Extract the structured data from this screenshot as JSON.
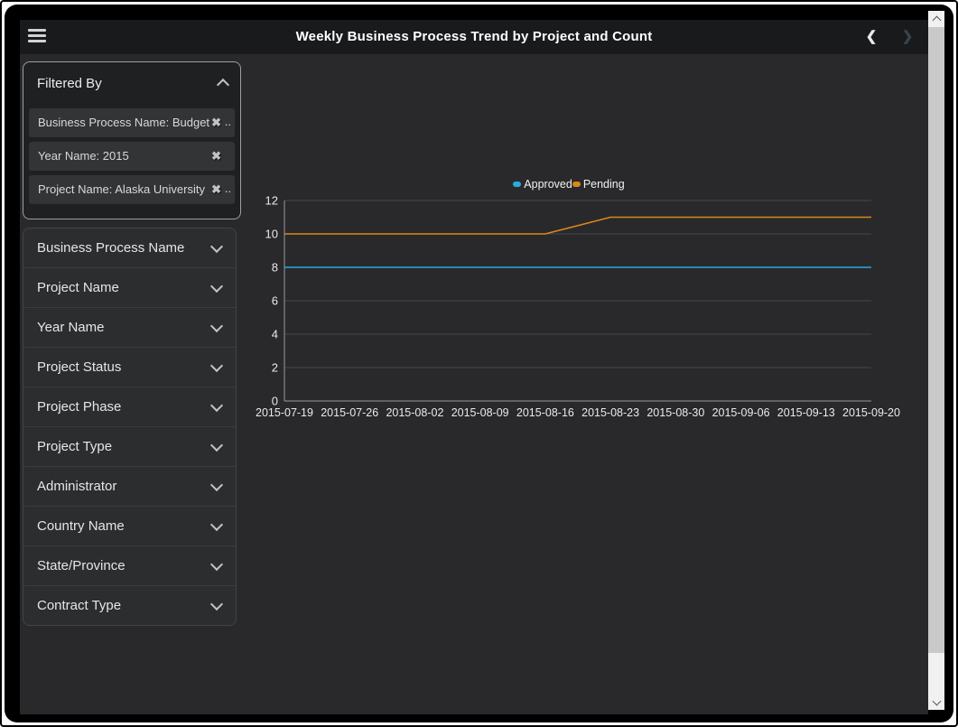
{
  "header": {
    "title": "Weekly Business Process Trend by Project and Count",
    "menu_icon": "hamburger",
    "prev_label": "❮",
    "next_label": "❯"
  },
  "filtered_by": {
    "title": "Filtered By",
    "collapse_icon": "chevron-up",
    "chips": [
      {
        "label": "Business Process Name: Budget",
        "ellipsis": "..",
        "remove_icon": "✖"
      },
      {
        "label": "Year Name: 2015",
        "ellipsis": "",
        "remove_icon": "✖"
      },
      {
        "label": "Project Name: Alaska University",
        "ellipsis": "..",
        "remove_icon": "✖"
      }
    ]
  },
  "accordions": [
    {
      "label": "Business Process Name"
    },
    {
      "label": "Project Name"
    },
    {
      "label": "Year Name"
    },
    {
      "label": "Project Status"
    },
    {
      "label": "Project Phase"
    },
    {
      "label": "Project Type"
    },
    {
      "label": "Administrator"
    },
    {
      "label": "Country Name"
    },
    {
      "label": "State/Province"
    },
    {
      "label": "Contract Type"
    }
  ],
  "chart_data": {
    "type": "line",
    "title": "",
    "x": [
      "2015-07-19",
      "2015-07-26",
      "2015-08-02",
      "2015-08-09",
      "2015-08-16",
      "2015-08-23",
      "2015-08-30",
      "2015-09-06",
      "2015-09-13",
      "2015-09-20"
    ],
    "series": [
      {
        "name": "Approved",
        "color": "#29ABDC",
        "values": [
          8,
          8,
          8,
          8,
          8,
          8,
          8,
          8,
          8,
          8
        ]
      },
      {
        "name": "Pending",
        "color": "#D8891B",
        "values": [
          10,
          10,
          10,
          10,
          10,
          11,
          11,
          11,
          11,
          11
        ]
      }
    ],
    "ylim": [
      0,
      12
    ],
    "yticks": [
      0,
      2,
      4,
      6,
      8,
      10,
      12
    ],
    "grid": true,
    "legend_position": "top-center",
    "xlabel": "",
    "ylabel": ""
  },
  "colors": {
    "screen_bg": "#29292b",
    "header_bg": "#191a1b",
    "panel_bg": "#1f2021",
    "chip_bg": "#333435",
    "accordion_bg": "#2c2d2f",
    "gridline": "#46474b",
    "axis": "#97999c",
    "tick_text": "#eaeaea",
    "scrollbar_track": "#f1f1f1",
    "scrollbar_thumb": "#c9c9c9"
  }
}
